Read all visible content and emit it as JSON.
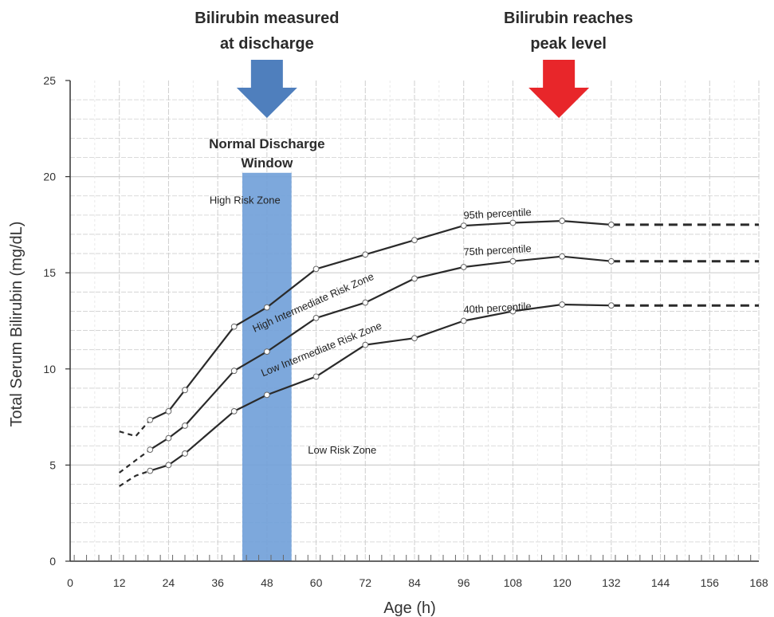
{
  "chart_data": {
    "type": "line",
    "xlabel": "Age (h)",
    "ylabel": "Total Serum Bilirubin (mg/dL)",
    "xlim": [
      0,
      168
    ],
    "ylim": [
      0,
      25
    ],
    "x_ticks": [
      0,
      12,
      24,
      36,
      48,
      60,
      72,
      84,
      96,
      108,
      120,
      132,
      144,
      156,
      168
    ],
    "y_ticks": [
      0,
      5,
      10,
      15,
      20,
      25
    ],
    "grid": true,
    "series": [
      {
        "name": "95th percentile",
        "solid": [
          [
            19.5,
            7.35
          ],
          [
            24,
            7.8
          ],
          [
            28,
            8.9
          ],
          [
            40,
            12.2
          ],
          [
            48,
            13.2
          ],
          [
            60,
            15.2
          ],
          [
            72,
            15.95
          ],
          [
            84,
            16.7
          ],
          [
            96,
            17.45
          ],
          [
            108,
            17.6
          ],
          [
            120,
            17.7
          ],
          [
            132,
            17.5
          ]
        ],
        "dashed_start": [
          [
            12,
            6.75
          ],
          [
            16,
            6.5
          ],
          [
            19.5,
            7.35
          ]
        ],
        "dashed_end": [
          [
            132,
            17.5
          ],
          [
            168,
            17.5
          ]
        ]
      },
      {
        "name": "75th percentile",
        "solid": [
          [
            19.5,
            5.8
          ],
          [
            24,
            6.4
          ],
          [
            28,
            7.05
          ],
          [
            40,
            9.9
          ],
          [
            48,
            10.9
          ],
          [
            60,
            12.65
          ],
          [
            72,
            13.45
          ],
          [
            84,
            14.7
          ],
          [
            96,
            15.3
          ],
          [
            108,
            15.6
          ],
          [
            120,
            15.85
          ],
          [
            132,
            15.6
          ]
        ],
        "dashed_start": [
          [
            12,
            4.6
          ],
          [
            16,
            5.25
          ],
          [
            19.5,
            5.8
          ]
        ],
        "dashed_end": [
          [
            132,
            15.6
          ],
          [
            168,
            15.6
          ]
        ]
      },
      {
        "name": "40th percentile",
        "solid": [
          [
            19.5,
            4.7
          ],
          [
            24,
            5.0
          ],
          [
            28,
            5.6
          ],
          [
            40,
            7.8
          ],
          [
            48,
            8.65
          ],
          [
            60,
            9.6
          ],
          [
            72,
            11.25
          ],
          [
            84,
            11.6
          ],
          [
            96,
            12.5
          ],
          [
            108,
            13.0
          ],
          [
            120,
            13.35
          ],
          [
            132,
            13.3
          ]
        ],
        "dashed_start": [
          [
            12,
            3.9
          ],
          [
            16,
            4.45
          ],
          [
            19.5,
            4.7
          ]
        ],
        "dashed_end": [
          [
            132,
            13.3
          ],
          [
            168,
            13.3
          ]
        ]
      }
    ],
    "zone_labels": [
      {
        "text": "High Risk Zone",
        "x": 34,
        "y": 18.6,
        "rotate": 0
      },
      {
        "text": "High Intermediate Risk Zone",
        "x": 45,
        "y": 11.9,
        "rotate": -24
      },
      {
        "text": "Low Intermediate Risk Zone",
        "x": 47,
        "y": 9.6,
        "rotate": -22
      },
      {
        "text": "Low Risk Zone",
        "x": 58,
        "y": 5.6,
        "rotate": 0
      }
    ],
    "percentile_label_positions": [
      {
        "x": 96,
        "y": 17.8,
        "rotate": -3
      },
      {
        "x": 96,
        "y": 15.9,
        "rotate": -3
      },
      {
        "x": 96,
        "y": 12.9,
        "rotate": -3
      }
    ],
    "discharge_window": {
      "x_start": 42,
      "x_end": 54,
      "y_top": 20.2,
      "color": "#6f9fd8"
    },
    "annotations": {
      "discharge_title_lines": [
        "Normal Discharge",
        "Window"
      ],
      "measured_lines": [
        "Bilirubin measured",
        "at discharge"
      ],
      "peak_lines": [
        "Bilirubin reaches",
        "peak level"
      ],
      "measured_arrow_x": 48,
      "peak_arrow_x": 120,
      "measured_arrow_color": "#4f7fbd",
      "peak_arrow_color": "#e8262a"
    },
    "colors": {
      "line": "#2a2a2a",
      "marker_fill": "#ffffff",
      "grid": "#cfcfcf"
    }
  }
}
